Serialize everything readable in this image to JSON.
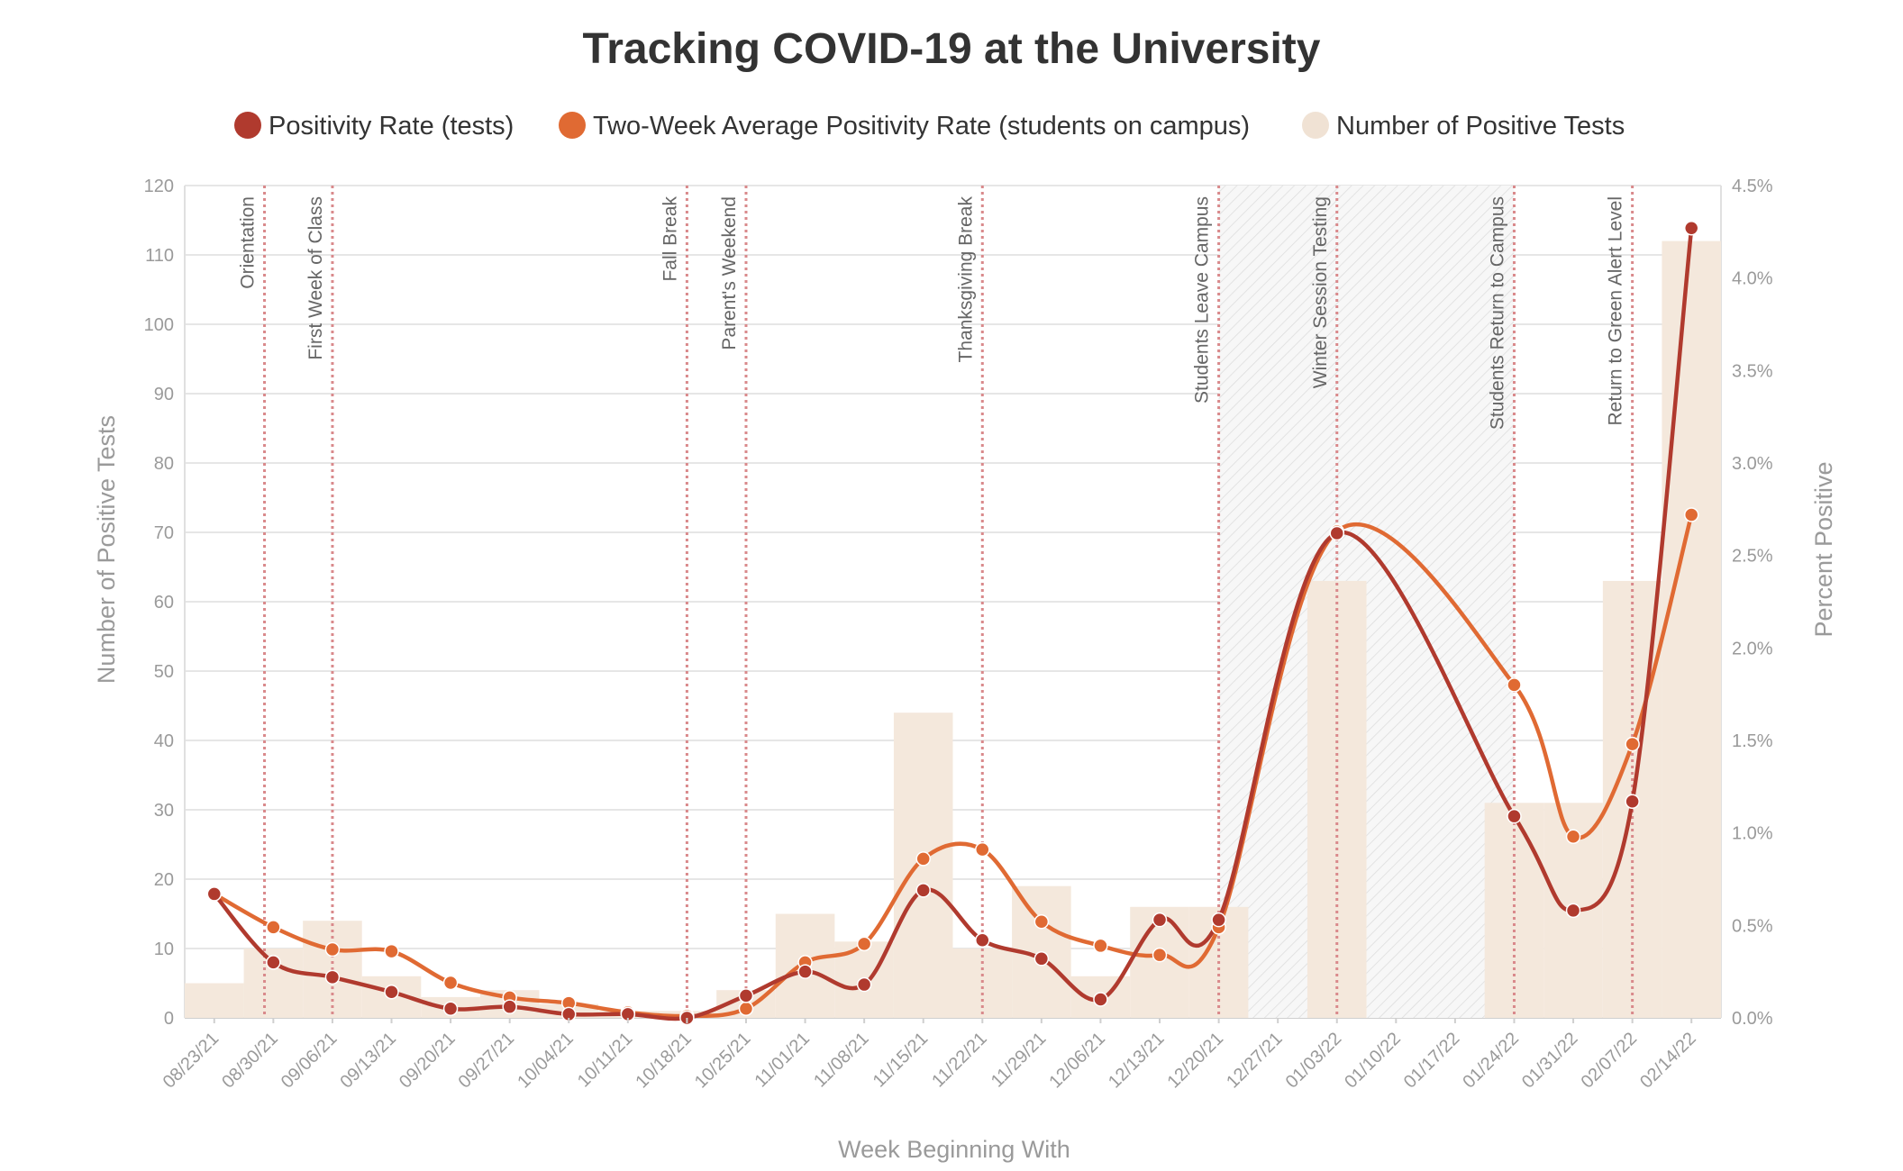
{
  "chart_data": {
    "type": "line",
    "title": "Tracking COVID-19 at the University",
    "xlabel": "Week Beginning With",
    "ylabel_left": "Number of Positive Tests",
    "ylabel_right": "Percent Positive",
    "ylim_left": [
      0,
      120
    ],
    "ylim_right": [
      0,
      4.5
    ],
    "y_ticks_left": [
      0,
      10,
      20,
      30,
      40,
      50,
      60,
      70,
      80,
      90,
      100,
      110,
      120
    ],
    "y_ticks_right": [
      "0.0%",
      "0.5%",
      "1.0%",
      "1.5%",
      "2.0%",
      "2.5%",
      "3.0%",
      "3.5%",
      "4.0%",
      "4.5%"
    ],
    "legend_position": "top-center",
    "grid": true,
    "categories": [
      "08/23/21",
      "08/30/21",
      "09/06/21",
      "09/13/21",
      "09/20/21",
      "09/27/21",
      "10/04/21",
      "10/11/21",
      "10/18/21",
      "10/25/21",
      "11/01/21",
      "11/08/21",
      "11/15/21",
      "11/22/21",
      "11/29/21",
      "12/06/21",
      "12/13/21",
      "12/20/21",
      "12/27/21",
      "01/03/22",
      "01/10/22",
      "01/17/22",
      "01/24/22",
      "01/31/22",
      "02/07/22",
      "02/14/22"
    ],
    "series": [
      {
        "name": "Positivity Rate (tests)",
        "type": "line",
        "axis": "right",
        "color": "#b03a2e",
        "values": [
          0.67,
          0.3,
          0.22,
          0.14,
          0.05,
          0.06,
          0.02,
          0.02,
          0.0,
          0.12,
          0.25,
          0.18,
          0.69,
          0.42,
          0.32,
          0.1,
          0.53,
          0.53,
          null,
          2.62,
          null,
          null,
          1.09,
          0.58,
          1.17,
          4.27
        ]
      },
      {
        "name": "Two-Week Average Positivity Rate (students on campus)",
        "type": "line",
        "axis": "right",
        "color": "#e06a33",
        "values": [
          0.67,
          0.49,
          0.37,
          0.36,
          0.19,
          0.11,
          0.08,
          0.03,
          0.01,
          0.05,
          0.3,
          0.4,
          0.86,
          0.91,
          0.52,
          0.39,
          0.34,
          0.49,
          null,
          2.63,
          null,
          null,
          1.8,
          0.98,
          1.48,
          2.72
        ]
      },
      {
        "name": "Number of Positive Tests",
        "type": "bar",
        "axis": "left",
        "color": "#f4e8dc",
        "values": [
          5,
          10,
          14,
          6,
          3,
          4,
          2,
          1,
          1,
          4,
          15,
          11,
          44,
          10,
          19,
          6,
          16,
          16,
          null,
          63,
          null,
          null,
          31,
          31,
          63,
          112
        ]
      }
    ],
    "events": [
      {
        "label": "Orientation",
        "x": 0.85
      },
      {
        "label": "First Week of Class",
        "x": 2.0
      },
      {
        "label": "Fall Break",
        "x": 8.0
      },
      {
        "label": "Parent's Weekend",
        "x": 9.0
      },
      {
        "label": "Thanksgiving Break",
        "x": 13.0
      },
      {
        "label": "Students Leave Campus",
        "x": 17.0
      },
      {
        "label": "Winter Session Testing",
        "x": 19.0
      },
      {
        "label": "Students Return to Campus",
        "x": 22.0
      },
      {
        "label": "Return to Green Alert Level",
        "x": 24.0
      }
    ],
    "shaded_period": {
      "start": 17.0,
      "end": 22.0
    }
  }
}
